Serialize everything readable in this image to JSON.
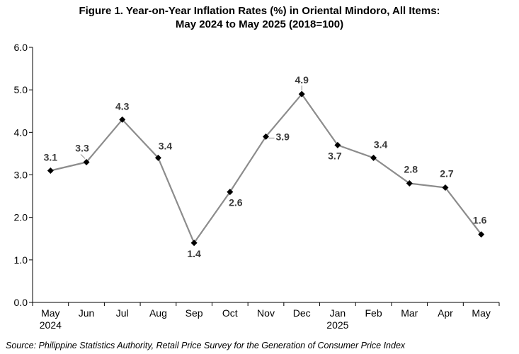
{
  "chart_data": {
    "type": "line",
    "title_line1": "Figure 1. Year-on-Year Inflation Rates (%) in Oriental Mindoro, All Items:",
    "title_line2": "May 2024 to May 2025 (2018=100)",
    "categories": [
      "May",
      "Jun",
      "Jul",
      "Aug",
      "Sep",
      "Oct",
      "Nov",
      "Dec",
      "Jan",
      "Feb",
      "Mar",
      "Apr",
      "May"
    ],
    "category_years": [
      "2024",
      "",
      "",
      "",
      "",
      "",
      "",
      "",
      "2025",
      "",
      "",
      "",
      ""
    ],
    "series": [
      {
        "values": [
          3.1,
          3.3,
          4.3,
          3.4,
          1.4,
          2.6,
          3.9,
          4.9,
          3.7,
          3.4,
          2.8,
          2.7,
          1.6
        ]
      }
    ],
    "data_labels": [
      "3.1",
      "3.3",
      "4.3",
      "3.4",
      "1.4",
      "2.6",
      "3.9",
      "4.9",
      "3.7",
      "3.4",
      "2.8",
      "2.7",
      "1.6"
    ],
    "ylim": [
      0,
      6
    ],
    "yticks": [
      "0.0",
      "1.0",
      "2.0",
      "3.0",
      "4.0",
      "5.0",
      "6.0"
    ],
    "xlabel": "",
    "ylabel": "",
    "grid": false,
    "legend": "none",
    "colors": {
      "line": "#8c8c8c",
      "marker": "#000000",
      "axis": "#000000",
      "label": "#3a3a3a"
    },
    "source": "Source: Philippine Statistics Authority, Retail Price Survey for the Generation of Consumer Price Index"
  }
}
